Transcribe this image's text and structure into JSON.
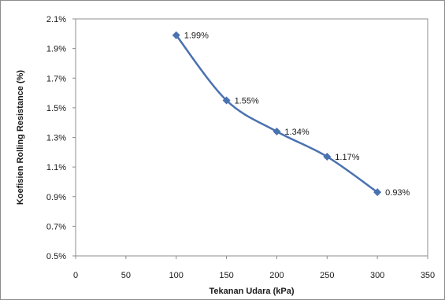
{
  "chart_data": {
    "type": "line",
    "title": "",
    "xlabel": "Tekanan Udara (kPa)",
    "ylabel": "Koefisien Rolling Resistance (%)",
    "x": [
      100,
      150,
      200,
      250,
      300
    ],
    "series": [
      {
        "values": [
          1.99,
          1.55,
          1.34,
          1.17,
          0.93
        ],
        "data_labels": [
          "1.99%",
          "1.55%",
          "1.34%",
          "1.17%",
          "0.93%"
        ],
        "color": "#4a72b0",
        "marker": "diamond",
        "smooth": true
      }
    ],
    "xlim": [
      0,
      350
    ],
    "ylim": [
      0.5,
      2.1
    ],
    "x_ticks": [
      0,
      50,
      100,
      150,
      200,
      250,
      300,
      350
    ],
    "x_tick_labels": [
      "0",
      "50",
      "100",
      "150",
      "200",
      "250",
      "300",
      "350"
    ],
    "y_ticks": [
      0.5,
      0.7,
      0.9,
      1.1,
      1.3,
      1.5,
      1.7,
      1.9,
      2.1
    ],
    "y_tick_labels": [
      "0.5%",
      "0.7%",
      "0.9%",
      "1.1%",
      "1.3%",
      "1.5%",
      "1.7%",
      "1.9%",
      "2.1%"
    ],
    "grid": false,
    "legend": "none"
  }
}
